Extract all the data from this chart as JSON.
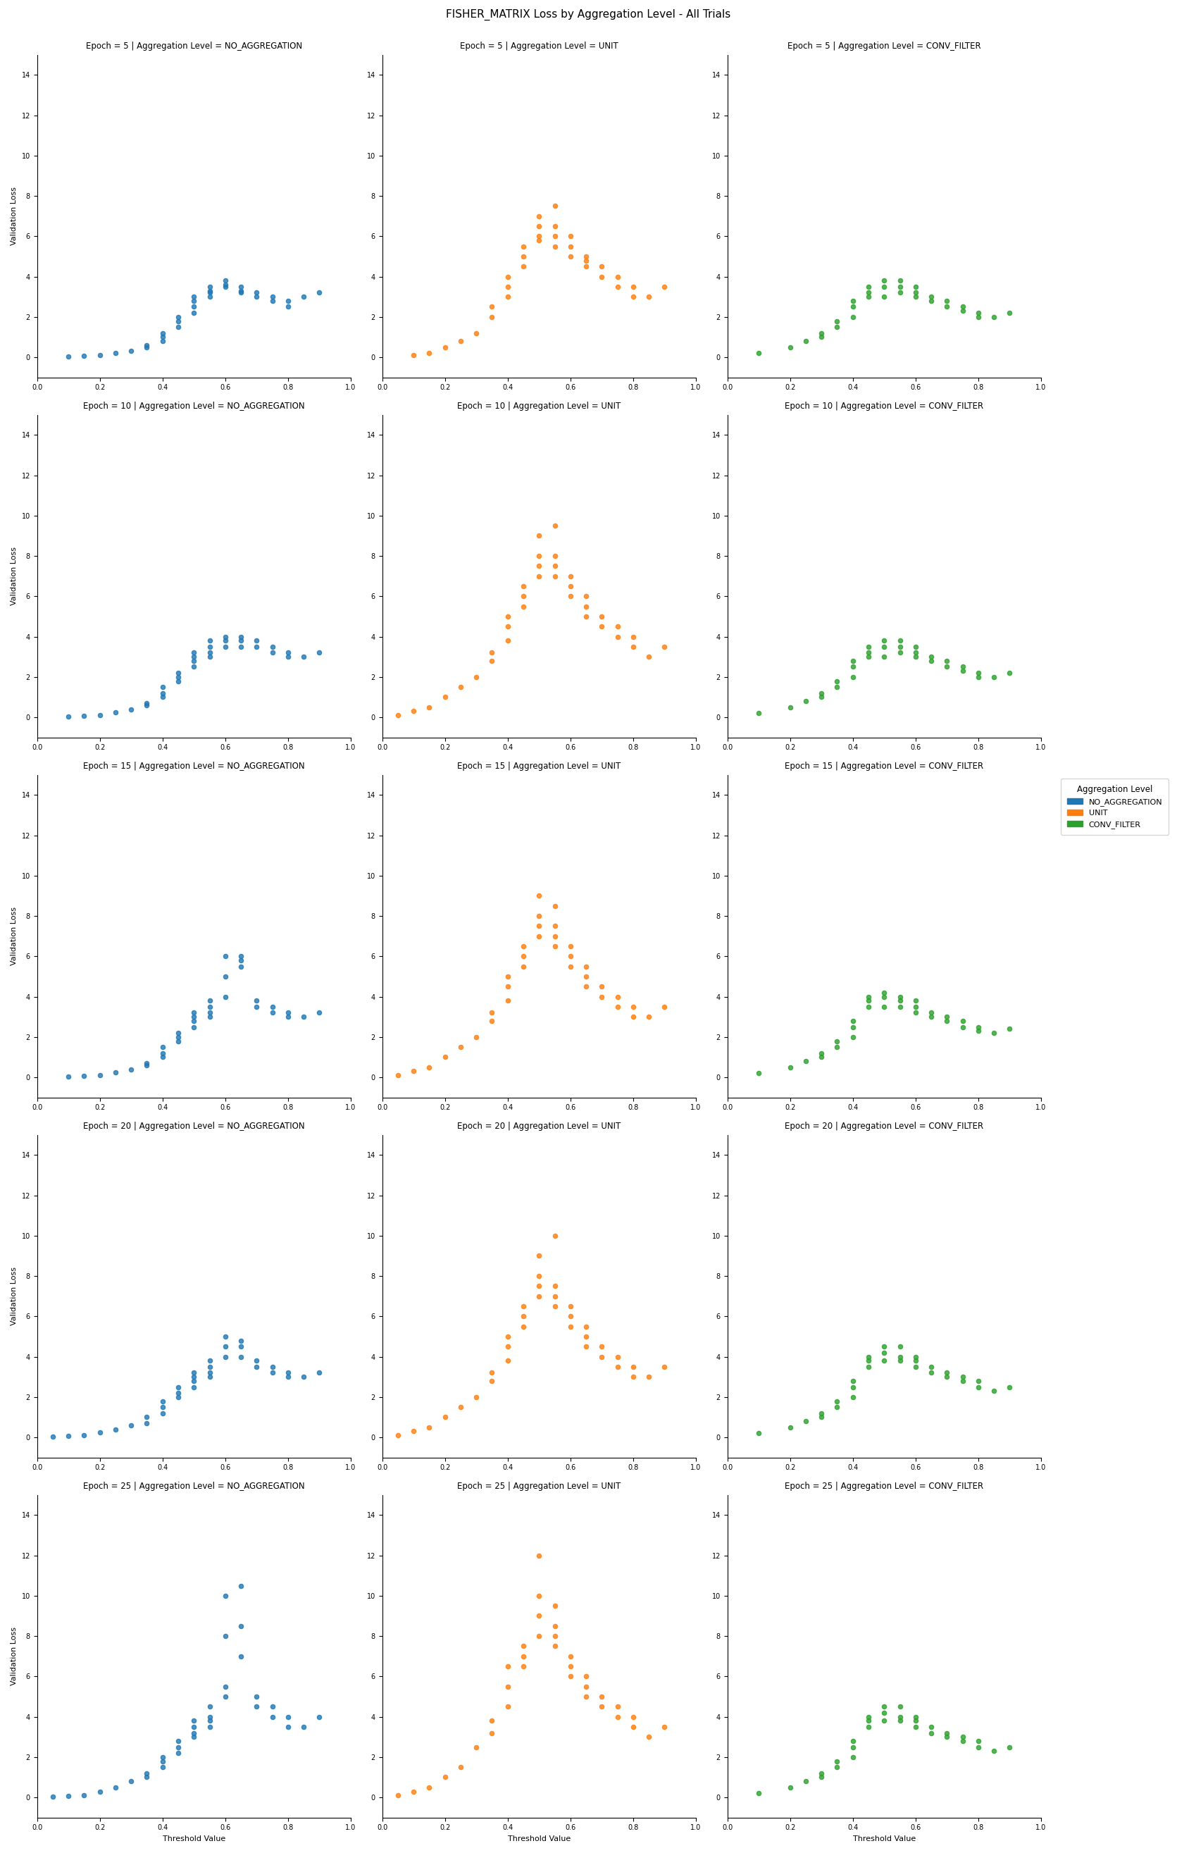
{
  "title": "FISHER_MATRIX Loss by Aggregation Level - All Trials",
  "epochs": [
    5,
    10,
    15,
    20,
    25
  ],
  "aggregation_levels": [
    "NO_AGGREGATION",
    "UNIT",
    "CONV_FILTER"
  ],
  "colors": {
    "NO_AGGREGATION": "#1f77b4",
    "UNIT": "#ff7f0e",
    "CONV_FILTER": "#2ca02c"
  },
  "xlabel": "Threshold Value",
  "ylabel": "Validation Loss",
  "xlim": [
    0.0,
    1.0
  ],
  "ylim": [
    -1.0,
    15.0
  ],
  "yticks": [
    0,
    2,
    4,
    6,
    8,
    10,
    12,
    14
  ],
  "xticks": [
    0.0,
    0.2,
    0.4,
    0.6,
    0.8,
    1.0
  ],
  "marker_size": 20,
  "alpha": 0.8,
  "scatter_data": {
    "5_NO_AGGREGATION": {
      "x": [
        0.1,
        0.15,
        0.2,
        0.25,
        0.3,
        0.35,
        0.35,
        0.4,
        0.4,
        0.4,
        0.45,
        0.45,
        0.45,
        0.5,
        0.5,
        0.5,
        0.5,
        0.55,
        0.55,
        0.55,
        0.55,
        0.6,
        0.6,
        0.6,
        0.65,
        0.65,
        0.65,
        0.7,
        0.7,
        0.75,
        0.75,
        0.8,
        0.8,
        0.85,
        0.9
      ],
      "y": [
        0.05,
        0.07,
        0.1,
        0.2,
        0.3,
        0.5,
        0.6,
        0.8,
        1.0,
        1.2,
        1.5,
        1.8,
        2.0,
        2.2,
        2.5,
        2.8,
        3.0,
        3.0,
        3.2,
        3.3,
        3.5,
        3.5,
        3.6,
        3.8,
        3.2,
        3.3,
        3.5,
        3.0,
        3.2,
        2.8,
        3.0,
        2.5,
        2.8,
        3.0,
        3.2
      ]
    },
    "5_UNIT": {
      "x": [
        0.1,
        0.15,
        0.2,
        0.25,
        0.3,
        0.35,
        0.35,
        0.4,
        0.4,
        0.4,
        0.45,
        0.45,
        0.45,
        0.5,
        0.5,
        0.5,
        0.5,
        0.55,
        0.55,
        0.55,
        0.55,
        0.6,
        0.6,
        0.6,
        0.65,
        0.65,
        0.65,
        0.7,
        0.7,
        0.75,
        0.75,
        0.8,
        0.8,
        0.85,
        0.9
      ],
      "y": [
        0.1,
        0.2,
        0.5,
        0.8,
        1.2,
        2.0,
        2.5,
        3.0,
        3.5,
        4.0,
        4.5,
        5.0,
        5.5,
        5.8,
        6.0,
        6.5,
        7.0,
        5.5,
        6.0,
        6.5,
        7.5,
        5.0,
        5.5,
        6.0,
        4.5,
        4.8,
        5.0,
        4.0,
        4.5,
        3.5,
        4.0,
        3.0,
        3.5,
        3.0,
        3.5
      ]
    },
    "5_CONV_FILTER": {
      "x": [
        0.1,
        0.2,
        0.25,
        0.3,
        0.3,
        0.35,
        0.35,
        0.4,
        0.4,
        0.4,
        0.45,
        0.45,
        0.45,
        0.5,
        0.5,
        0.5,
        0.55,
        0.55,
        0.55,
        0.6,
        0.6,
        0.6,
        0.65,
        0.65,
        0.7,
        0.7,
        0.75,
        0.75,
        0.8,
        0.8,
        0.85,
        0.9
      ],
      "y": [
        0.2,
        0.5,
        0.8,
        1.0,
        1.2,
        1.5,
        1.8,
        2.0,
        2.5,
        2.8,
        3.0,
        3.2,
        3.5,
        3.0,
        3.5,
        3.8,
        3.2,
        3.5,
        3.8,
        3.0,
        3.2,
        3.5,
        2.8,
        3.0,
        2.5,
        2.8,
        2.3,
        2.5,
        2.0,
        2.2,
        2.0,
        2.2
      ]
    },
    "10_NO_AGGREGATION": {
      "x": [
        0.1,
        0.15,
        0.2,
        0.25,
        0.3,
        0.35,
        0.35,
        0.4,
        0.4,
        0.4,
        0.45,
        0.45,
        0.45,
        0.5,
        0.5,
        0.5,
        0.5,
        0.55,
        0.55,
        0.55,
        0.55,
        0.6,
        0.6,
        0.6,
        0.65,
        0.65,
        0.65,
        0.7,
        0.7,
        0.75,
        0.75,
        0.8,
        0.8,
        0.85,
        0.9
      ],
      "y": [
        0.05,
        0.08,
        0.12,
        0.25,
        0.4,
        0.6,
        0.7,
        1.0,
        1.2,
        1.5,
        1.8,
        2.0,
        2.2,
        2.5,
        2.8,
        3.0,
        3.2,
        3.0,
        3.2,
        3.5,
        3.8,
        3.5,
        3.8,
        4.0,
        3.5,
        3.8,
        4.0,
        3.5,
        3.8,
        3.2,
        3.5,
        3.0,
        3.2,
        3.0,
        3.2
      ]
    },
    "10_UNIT": {
      "x": [
        0.05,
        0.1,
        0.15,
        0.2,
        0.25,
        0.3,
        0.35,
        0.35,
        0.4,
        0.4,
        0.4,
        0.45,
        0.45,
        0.45,
        0.5,
        0.5,
        0.5,
        0.5,
        0.55,
        0.55,
        0.55,
        0.55,
        0.6,
        0.6,
        0.6,
        0.65,
        0.65,
        0.65,
        0.7,
        0.7,
        0.75,
        0.75,
        0.8,
        0.8,
        0.85,
        0.9
      ],
      "y": [
        0.1,
        0.3,
        0.5,
        1.0,
        1.5,
        2.0,
        2.8,
        3.2,
        3.8,
        4.5,
        5.0,
        5.5,
        6.0,
        6.5,
        7.0,
        7.5,
        8.0,
        9.0,
        7.0,
        7.5,
        8.0,
        9.5,
        6.0,
        6.5,
        7.0,
        5.0,
        5.5,
        6.0,
        4.5,
        5.0,
        4.0,
        4.5,
        3.5,
        4.0,
        3.0,
        3.5
      ]
    },
    "10_CONV_FILTER": {
      "x": [
        0.1,
        0.2,
        0.25,
        0.3,
        0.3,
        0.35,
        0.35,
        0.4,
        0.4,
        0.4,
        0.45,
        0.45,
        0.45,
        0.5,
        0.5,
        0.5,
        0.55,
        0.55,
        0.55,
        0.6,
        0.6,
        0.6,
        0.65,
        0.65,
        0.7,
        0.7,
        0.75,
        0.75,
        0.8,
        0.8,
        0.85,
        0.9
      ],
      "y": [
        0.2,
        0.5,
        0.8,
        1.0,
        1.2,
        1.5,
        1.8,
        2.0,
        2.5,
        2.8,
        3.0,
        3.2,
        3.5,
        3.0,
        3.5,
        3.8,
        3.2,
        3.5,
        3.8,
        3.0,
        3.2,
        3.5,
        2.8,
        3.0,
        2.5,
        2.8,
        2.3,
        2.5,
        2.0,
        2.2,
        2.0,
        2.2
      ]
    },
    "15_NO_AGGREGATION": {
      "x": [
        0.1,
        0.15,
        0.2,
        0.25,
        0.3,
        0.35,
        0.35,
        0.4,
        0.4,
        0.4,
        0.45,
        0.45,
        0.45,
        0.5,
        0.5,
        0.5,
        0.5,
        0.55,
        0.55,
        0.55,
        0.55,
        0.6,
        0.6,
        0.6,
        0.65,
        0.65,
        0.65,
        0.7,
        0.7,
        0.75,
        0.75,
        0.8,
        0.8,
        0.85,
        0.9
      ],
      "y": [
        0.05,
        0.08,
        0.12,
        0.25,
        0.4,
        0.6,
        0.7,
        1.0,
        1.2,
        1.5,
        1.8,
        2.0,
        2.2,
        2.5,
        2.8,
        3.0,
        3.2,
        3.0,
        3.2,
        3.5,
        3.8,
        4.0,
        5.0,
        6.0,
        5.5,
        5.8,
        6.0,
        3.5,
        3.8,
        3.2,
        3.5,
        3.0,
        3.2,
        3.0,
        3.2
      ]
    },
    "15_UNIT": {
      "x": [
        0.05,
        0.1,
        0.15,
        0.2,
        0.25,
        0.3,
        0.35,
        0.35,
        0.4,
        0.4,
        0.4,
        0.45,
        0.45,
        0.45,
        0.5,
        0.5,
        0.5,
        0.5,
        0.55,
        0.55,
        0.55,
        0.55,
        0.6,
        0.6,
        0.6,
        0.65,
        0.65,
        0.65,
        0.7,
        0.7,
        0.75,
        0.75,
        0.8,
        0.8,
        0.85,
        0.9
      ],
      "y": [
        0.1,
        0.3,
        0.5,
        1.0,
        1.5,
        2.0,
        2.8,
        3.2,
        3.8,
        4.5,
        5.0,
        5.5,
        6.0,
        6.5,
        7.0,
        7.5,
        8.0,
        9.0,
        6.5,
        7.0,
        7.5,
        8.5,
        5.5,
        6.0,
        6.5,
        4.5,
        5.0,
        5.5,
        4.0,
        4.5,
        3.5,
        4.0,
        3.0,
        3.5,
        3.0,
        3.5
      ]
    },
    "15_CONV_FILTER": {
      "x": [
        0.1,
        0.2,
        0.25,
        0.3,
        0.3,
        0.35,
        0.35,
        0.4,
        0.4,
        0.4,
        0.45,
        0.45,
        0.45,
        0.5,
        0.5,
        0.5,
        0.55,
        0.55,
        0.55,
        0.6,
        0.6,
        0.6,
        0.65,
        0.65,
        0.7,
        0.7,
        0.75,
        0.75,
        0.8,
        0.8,
        0.85,
        0.9
      ],
      "y": [
        0.2,
        0.5,
        0.8,
        1.0,
        1.2,
        1.5,
        1.8,
        2.0,
        2.5,
        2.8,
        3.5,
        3.8,
        4.0,
        3.5,
        4.0,
        4.2,
        3.5,
        3.8,
        4.0,
        3.2,
        3.5,
        3.8,
        3.0,
        3.2,
        2.8,
        3.0,
        2.5,
        2.8,
        2.3,
        2.5,
        2.2,
        2.4
      ]
    },
    "20_NO_AGGREGATION": {
      "x": [
        0.05,
        0.1,
        0.15,
        0.2,
        0.25,
        0.3,
        0.35,
        0.35,
        0.4,
        0.4,
        0.4,
        0.45,
        0.45,
        0.45,
        0.5,
        0.5,
        0.5,
        0.5,
        0.55,
        0.55,
        0.55,
        0.55,
        0.6,
        0.6,
        0.6,
        0.65,
        0.65,
        0.65,
        0.7,
        0.7,
        0.75,
        0.75,
        0.8,
        0.8,
        0.85,
        0.9
      ],
      "y": [
        0.05,
        0.08,
        0.12,
        0.25,
        0.4,
        0.6,
        0.7,
        1.0,
        1.2,
        1.5,
        1.8,
        2.0,
        2.2,
        2.5,
        2.5,
        2.8,
        3.0,
        3.2,
        3.0,
        3.2,
        3.5,
        3.8,
        4.0,
        4.5,
        5.0,
        4.0,
        4.5,
        4.8,
        3.5,
        3.8,
        3.2,
        3.5,
        3.0,
        3.2,
        3.0,
        3.2
      ]
    },
    "20_UNIT": {
      "x": [
        0.05,
        0.1,
        0.15,
        0.2,
        0.25,
        0.3,
        0.35,
        0.35,
        0.4,
        0.4,
        0.4,
        0.45,
        0.45,
        0.45,
        0.5,
        0.5,
        0.5,
        0.5,
        0.55,
        0.55,
        0.55,
        0.55,
        0.6,
        0.6,
        0.6,
        0.65,
        0.65,
        0.65,
        0.7,
        0.7,
        0.75,
        0.75,
        0.8,
        0.8,
        0.85,
        0.9
      ],
      "y": [
        0.1,
        0.3,
        0.5,
        1.0,
        1.5,
        2.0,
        2.8,
        3.2,
        3.8,
        4.5,
        5.0,
        5.5,
        6.0,
        6.5,
        7.0,
        7.5,
        8.0,
        9.0,
        6.5,
        7.0,
        7.5,
        10.0,
        5.5,
        6.0,
        6.5,
        4.5,
        5.0,
        5.5,
        4.0,
        4.5,
        3.5,
        4.0,
        3.0,
        3.5,
        3.0,
        3.5
      ]
    },
    "20_CONV_FILTER": {
      "x": [
        0.1,
        0.2,
        0.25,
        0.3,
        0.3,
        0.35,
        0.35,
        0.4,
        0.4,
        0.4,
        0.45,
        0.45,
        0.45,
        0.5,
        0.5,
        0.5,
        0.55,
        0.55,
        0.55,
        0.6,
        0.6,
        0.6,
        0.65,
        0.65,
        0.7,
        0.7,
        0.75,
        0.75,
        0.8,
        0.8,
        0.85,
        0.9
      ],
      "y": [
        0.2,
        0.5,
        0.8,
        1.0,
        1.2,
        1.5,
        1.8,
        2.0,
        2.5,
        2.8,
        3.5,
        3.8,
        4.0,
        3.8,
        4.2,
        4.5,
        3.8,
        4.0,
        4.5,
        3.5,
        3.8,
        4.0,
        3.2,
        3.5,
        3.0,
        3.2,
        2.8,
        3.0,
        2.5,
        2.8,
        2.3,
        2.5
      ]
    },
    "25_NO_AGGREGATION": {
      "x": [
        0.05,
        0.1,
        0.15,
        0.2,
        0.25,
        0.3,
        0.35,
        0.35,
        0.4,
        0.4,
        0.4,
        0.45,
        0.45,
        0.45,
        0.5,
        0.5,
        0.5,
        0.5,
        0.55,
        0.55,
        0.55,
        0.55,
        0.6,
        0.6,
        0.6,
        0.6,
        0.65,
        0.65,
        0.65,
        0.7,
        0.7,
        0.75,
        0.75,
        0.8,
        0.8,
        0.85,
        0.9
      ],
      "y": [
        0.05,
        0.08,
        0.12,
        0.3,
        0.5,
        0.8,
        1.0,
        1.2,
        1.5,
        1.8,
        2.0,
        2.2,
        2.5,
        2.8,
        3.0,
        3.2,
        3.5,
        3.8,
        3.5,
        3.8,
        4.0,
        4.5,
        5.0,
        5.5,
        8.0,
        10.0,
        7.0,
        8.5,
        10.5,
        4.5,
        5.0,
        4.0,
        4.5,
        3.5,
        4.0,
        3.5,
        4.0
      ]
    },
    "25_UNIT": {
      "x": [
        0.05,
        0.1,
        0.15,
        0.2,
        0.25,
        0.3,
        0.35,
        0.35,
        0.4,
        0.4,
        0.4,
        0.45,
        0.45,
        0.45,
        0.5,
        0.5,
        0.5,
        0.5,
        0.55,
        0.55,
        0.55,
        0.55,
        0.6,
        0.6,
        0.6,
        0.65,
        0.65,
        0.65,
        0.7,
        0.7,
        0.75,
        0.75,
        0.8,
        0.8,
        0.85,
        0.9
      ],
      "y": [
        0.1,
        0.3,
        0.5,
        1.0,
        1.5,
        2.5,
        3.2,
        3.8,
        4.5,
        5.5,
        6.5,
        6.5,
        7.0,
        7.5,
        8.0,
        9.0,
        10.0,
        12.0,
        7.5,
        8.0,
        8.5,
        9.5,
        6.0,
        6.5,
        7.0,
        5.0,
        5.5,
        6.0,
        4.5,
        5.0,
        4.0,
        4.5,
        3.5,
        4.0,
        3.0,
        3.5
      ]
    },
    "25_CONV_FILTER": {
      "x": [
        0.1,
        0.2,
        0.25,
        0.3,
        0.3,
        0.35,
        0.35,
        0.4,
        0.4,
        0.4,
        0.45,
        0.45,
        0.45,
        0.5,
        0.5,
        0.5,
        0.55,
        0.55,
        0.55,
        0.6,
        0.6,
        0.6,
        0.65,
        0.65,
        0.7,
        0.7,
        0.75,
        0.75,
        0.8,
        0.8,
        0.85,
        0.9
      ],
      "y": [
        0.2,
        0.5,
        0.8,
        1.0,
        1.2,
        1.5,
        1.8,
        2.0,
        2.5,
        2.8,
        3.5,
        3.8,
        4.0,
        3.8,
        4.2,
        4.5,
        3.8,
        4.0,
        4.5,
        3.5,
        3.8,
        4.0,
        3.2,
        3.5,
        3.0,
        3.2,
        2.8,
        3.0,
        2.5,
        2.8,
        2.3,
        2.5
      ]
    }
  }
}
